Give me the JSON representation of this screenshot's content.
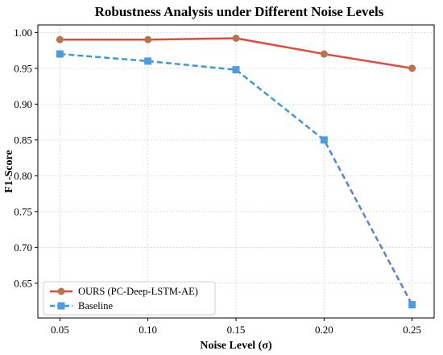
{
  "chart_data": {
    "type": "line",
    "title": "Robustness Analysis under Different Noise Levels",
    "xlabel": "Noise Level (σ)",
    "ylabel": "F1-Score",
    "x": [
      0.05,
      0.1,
      0.15,
      0.2,
      0.25
    ],
    "x_tick_labels": [
      "0.05",
      "0.10",
      "0.15",
      "0.20",
      "0.25"
    ],
    "y_tick_values": [
      0.65,
      0.7,
      0.75,
      0.8,
      0.85,
      0.9,
      0.95,
      1.0
    ],
    "y_tick_labels": [
      "0.65",
      "0.70",
      "0.75",
      "0.80",
      "0.85",
      "0.90",
      "0.95",
      "1.00"
    ],
    "xlim": [
      0.0375,
      0.2625
    ],
    "ylim": [
      0.6015,
      1.0105
    ],
    "grid": true,
    "legend_position": "lower-left",
    "series": [
      {
        "name": "OURS (PC-Deep-LSTM-AE)",
        "values": [
          0.99,
          0.99,
          0.992,
          0.97,
          0.95
        ],
        "color": "#e2493b",
        "marker": "circle",
        "marker_color": "#b8744a",
        "line_style": "solid"
      },
      {
        "name": "Baseline",
        "values": [
          0.97,
          0.96,
          0.948,
          0.85,
          0.62
        ],
        "color": "#3a9ad4",
        "end_color": "#6677d6",
        "marker": "square",
        "marker_color": "#4a9ee0",
        "line_style": "dashed"
      }
    ]
  }
}
